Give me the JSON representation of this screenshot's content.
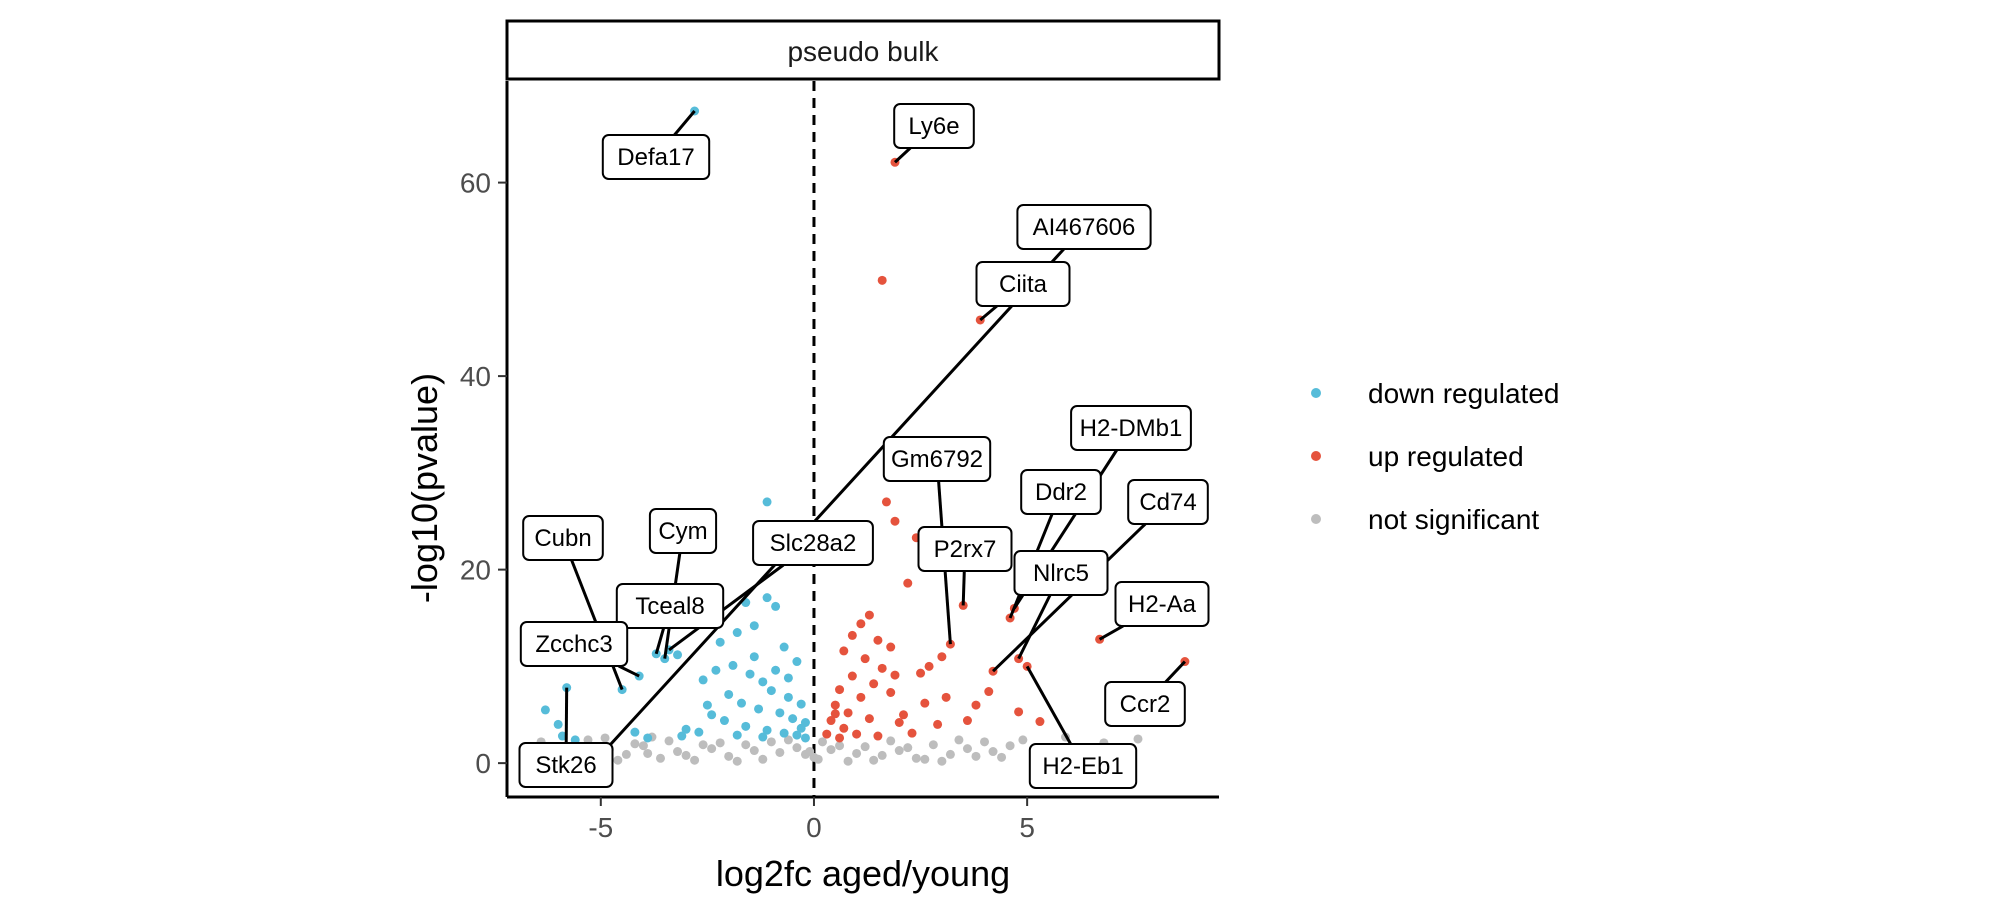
{
  "chart_data": {
    "type": "scatter",
    "facet_title": "pseudo bulk",
    "xlabel": "log2fc aged/young",
    "ylabel": "-log10(pvalue)",
    "xlim": [
      -7.2,
      9.5
    ],
    "ylim": [
      -3.5,
      70.5
    ],
    "xticks": [
      -5,
      0,
      5
    ],
    "yticks": [
      0,
      20,
      40,
      60
    ],
    "threshold_line_x": 0,
    "grid": false,
    "legend_position": "right",
    "colors": {
      "down regulated": "#56bcd9",
      "up regulated": "#e5533d",
      "not significant": "#bdbdbd"
    },
    "legend": [
      "down regulated",
      "up regulated",
      "not significant"
    ],
    "series": [
      {
        "name": "down regulated",
        "points": [
          [
            -2.8,
            67.4
          ],
          [
            -1.1,
            27.0
          ],
          [
            -6.3,
            5.5
          ],
          [
            -5.8,
            7.8
          ],
          [
            -6.0,
            4.0
          ],
          [
            -5.9,
            2.8
          ],
          [
            -5.6,
            2.4
          ],
          [
            -4.1,
            9.0
          ],
          [
            -4.5,
            7.6
          ],
          [
            -3.7,
            11.3
          ],
          [
            -3.5,
            10.8
          ],
          [
            -3.2,
            11.2
          ],
          [
            -3.4,
            11.7
          ],
          [
            -4.2,
            3.2
          ],
          [
            -3.0,
            3.5
          ],
          [
            -3.9,
            2.6
          ],
          [
            -3.1,
            2.8
          ],
          [
            -1.6,
            16.6
          ],
          [
            -1.1,
            17.1
          ],
          [
            -0.9,
            16.2
          ],
          [
            -2.2,
            12.5
          ],
          [
            -1.8,
            13.5
          ],
          [
            -1.4,
            14.2
          ],
          [
            -0.7,
            12.0
          ],
          [
            -0.4,
            10.5
          ],
          [
            -2.6,
            8.6
          ],
          [
            -2.3,
            9.6
          ],
          [
            -1.9,
            10.1
          ],
          [
            -1.5,
            9.2
          ],
          [
            -1.2,
            8.4
          ],
          [
            -1.0,
            7.5
          ],
          [
            -0.6,
            6.8
          ],
          [
            -0.3,
            6.1
          ],
          [
            -2.0,
            7.1
          ],
          [
            -1.7,
            6.2
          ],
          [
            -1.3,
            5.6
          ],
          [
            -0.8,
            5.2
          ],
          [
            -0.5,
            4.6
          ],
          [
            -0.2,
            4.2
          ],
          [
            -2.4,
            5.0
          ],
          [
            -2.1,
            4.4
          ],
          [
            -1.6,
            3.8
          ],
          [
            -1.1,
            3.4
          ],
          [
            -0.7,
            3.1
          ],
          [
            -0.4,
            2.9
          ],
          [
            -0.2,
            2.6
          ],
          [
            -2.7,
            3.2
          ],
          [
            -2.5,
            6.0
          ],
          [
            -0.9,
            9.6
          ],
          [
            -1.4,
            11.0
          ],
          [
            -0.6,
            8.8
          ],
          [
            -0.3,
            3.6
          ],
          [
            -1.2,
            2.7
          ],
          [
            -1.8,
            2.9
          ]
        ]
      },
      {
        "name": "up regulated",
        "points": [
          [
            1.9,
            62.1
          ],
          [
            1.6,
            49.9
          ],
          [
            3.9,
            45.8
          ],
          [
            1.7,
            27.0
          ],
          [
            1.9,
            25.0
          ],
          [
            2.4,
            23.3
          ],
          [
            2.2,
            18.6
          ],
          [
            3.5,
            16.3
          ],
          [
            4.6,
            15.0
          ],
          [
            4.7,
            16.0
          ],
          [
            6.7,
            12.8
          ],
          [
            8.7,
            10.5
          ],
          [
            4.8,
            10.8
          ],
          [
            5.0,
            10.0
          ],
          [
            4.2,
            9.5
          ],
          [
            3.2,
            12.3
          ],
          [
            2.5,
            9.3
          ],
          [
            2.7,
            10.0
          ],
          [
            3.0,
            11.0
          ],
          [
            4.1,
            7.4
          ],
          [
            3.1,
            6.8
          ],
          [
            3.8,
            6.0
          ],
          [
            4.8,
            5.3
          ],
          [
            5.3,
            4.3
          ],
          [
            3.6,
            4.4
          ],
          [
            2.1,
            5.0
          ],
          [
            1.3,
            15.3
          ],
          [
            1.1,
            14.4
          ],
          [
            1.5,
            12.7
          ],
          [
            0.9,
            13.2
          ],
          [
            1.8,
            12.0
          ],
          [
            0.7,
            11.6
          ],
          [
            1.2,
            10.8
          ],
          [
            1.6,
            9.8
          ],
          [
            0.9,
            9.0
          ],
          [
            1.4,
            8.2
          ],
          [
            0.6,
            7.6
          ],
          [
            1.1,
            6.8
          ],
          [
            1.8,
            7.3
          ],
          [
            0.5,
            6.0
          ],
          [
            0.8,
            5.2
          ],
          [
            1.3,
            4.6
          ],
          [
            2.0,
            4.2
          ],
          [
            0.4,
            4.4
          ],
          [
            0.7,
            3.6
          ],
          [
            1.0,
            3.0
          ],
          [
            1.5,
            2.8
          ],
          [
            2.3,
            3.1
          ],
          [
            0.3,
            3.0
          ],
          [
            0.6,
            2.6
          ],
          [
            2.6,
            6.2
          ],
          [
            2.9,
            4.0
          ],
          [
            1.9,
            9.1
          ],
          [
            0.5,
            5.1
          ]
        ]
      },
      {
        "name": "not significant",
        "points": [
          [
            -4.8,
            1.4
          ],
          [
            -4.4,
            0.9
          ],
          [
            -4.0,
            1.8
          ],
          [
            -3.6,
            0.5
          ],
          [
            -3.2,
            1.2
          ],
          [
            -2.8,
            0.3
          ],
          [
            -2.4,
            1.5
          ],
          [
            -2.0,
            0.7
          ],
          [
            -1.6,
            1.9
          ],
          [
            -1.2,
            0.4
          ],
          [
            -0.8,
            1.1
          ],
          [
            -0.4,
            1.6
          ],
          [
            0.0,
            0.6
          ],
          [
            0.4,
            1.4
          ],
          [
            0.8,
            0.2
          ],
          [
            1.2,
            1.7
          ],
          [
            1.6,
            0.8
          ],
          [
            2.0,
            1.3
          ],
          [
            2.4,
            0.5
          ],
          [
            2.8,
            1.9
          ],
          [
            3.2,
            0.9
          ],
          [
            3.6,
            1.5
          ],
          [
            4.0,
            2.2
          ],
          [
            4.4,
            0.6
          ],
          [
            -4.6,
            0.3
          ],
          [
            -3.9,
            1.0
          ],
          [
            -3.0,
            0.8
          ],
          [
            -2.2,
            2.1
          ],
          [
            -1.4,
            1.3
          ],
          [
            -0.6,
            2.4
          ],
          [
            0.2,
            2.2
          ],
          [
            1.0,
            1.0
          ],
          [
            1.8,
            2.3
          ],
          [
            2.6,
            0.4
          ],
          [
            3.4,
            2.4
          ],
          [
            4.2,
            1.2
          ],
          [
            -4.2,
            2.0
          ],
          [
            -3.4,
            2.3
          ],
          [
            -2.6,
            1.9
          ],
          [
            -1.8,
            0.2
          ],
          [
            -1.0,
            2.2
          ],
          [
            -0.2,
            0.9
          ],
          [
            0.6,
            1.8
          ],
          [
            1.4,
            0.3
          ],
          [
            2.2,
            1.6
          ],
          [
            3.0,
            0.2
          ],
          [
            3.8,
            0.7
          ],
          [
            4.6,
            1.8
          ],
          [
            7.6,
            2.5
          ],
          [
            6.8,
            2.1
          ],
          [
            5.5,
            1.6
          ],
          [
            -5.0,
            1.6
          ],
          [
            -5.3,
            2.4
          ],
          [
            -6.4,
            2.2
          ],
          [
            -4.9,
            2.6
          ],
          [
            4.9,
            2.4
          ],
          [
            5.9,
            2.7
          ],
          [
            -0.1,
            1.2
          ],
          [
            0.1,
            0.4
          ],
          [
            -3.8,
            2.7
          ]
        ]
      }
    ],
    "annotations": [
      {
        "label": "Defa17",
        "x": -2.8,
        "y": 67.4
      },
      {
        "label": "Ly6e",
        "x": 1.9,
        "y": 62.1
      },
      {
        "label": "AI467606",
        "x": -4.8,
        "y": 1.8
      },
      {
        "label": "Ciita",
        "x": 3.9,
        "y": 45.8
      },
      {
        "label": "H2-DMb1",
        "x": 4.7,
        "y": 16.0
      },
      {
        "label": "Gm6792",
        "x": 3.2,
        "y": 12.3
      },
      {
        "label": "Ddr2",
        "x": 4.6,
        "y": 15.0
      },
      {
        "label": "Cd74",
        "x": 4.2,
        "y": 9.5
      },
      {
        "label": "Cubn",
        "x": -4.5,
        "y": 7.6
      },
      {
        "label": "Cym",
        "x": -3.5,
        "y": 10.8
      },
      {
        "label": "Slc28a2",
        "x": -3.4,
        "y": 11.7
      },
      {
        "label": "P2rx7",
        "x": 3.5,
        "y": 16.3
      },
      {
        "label": "Nlrc5",
        "x": 4.8,
        "y": 10.8
      },
      {
        "label": "Tceal8",
        "x": -3.7,
        "y": 11.3
      },
      {
        "label": "H2-Aa",
        "x": 6.7,
        "y": 12.8
      },
      {
        "label": "Zcchc3",
        "x": -4.1,
        "y": 9.0
      },
      {
        "label": "Ccr2",
        "x": 8.7,
        "y": 10.5
      },
      {
        "label": "Stk26",
        "x": -5.8,
        "y": 7.8
      },
      {
        "label": "H2-Eb1",
        "x": 5.0,
        "y": 10.0
      }
    ]
  }
}
